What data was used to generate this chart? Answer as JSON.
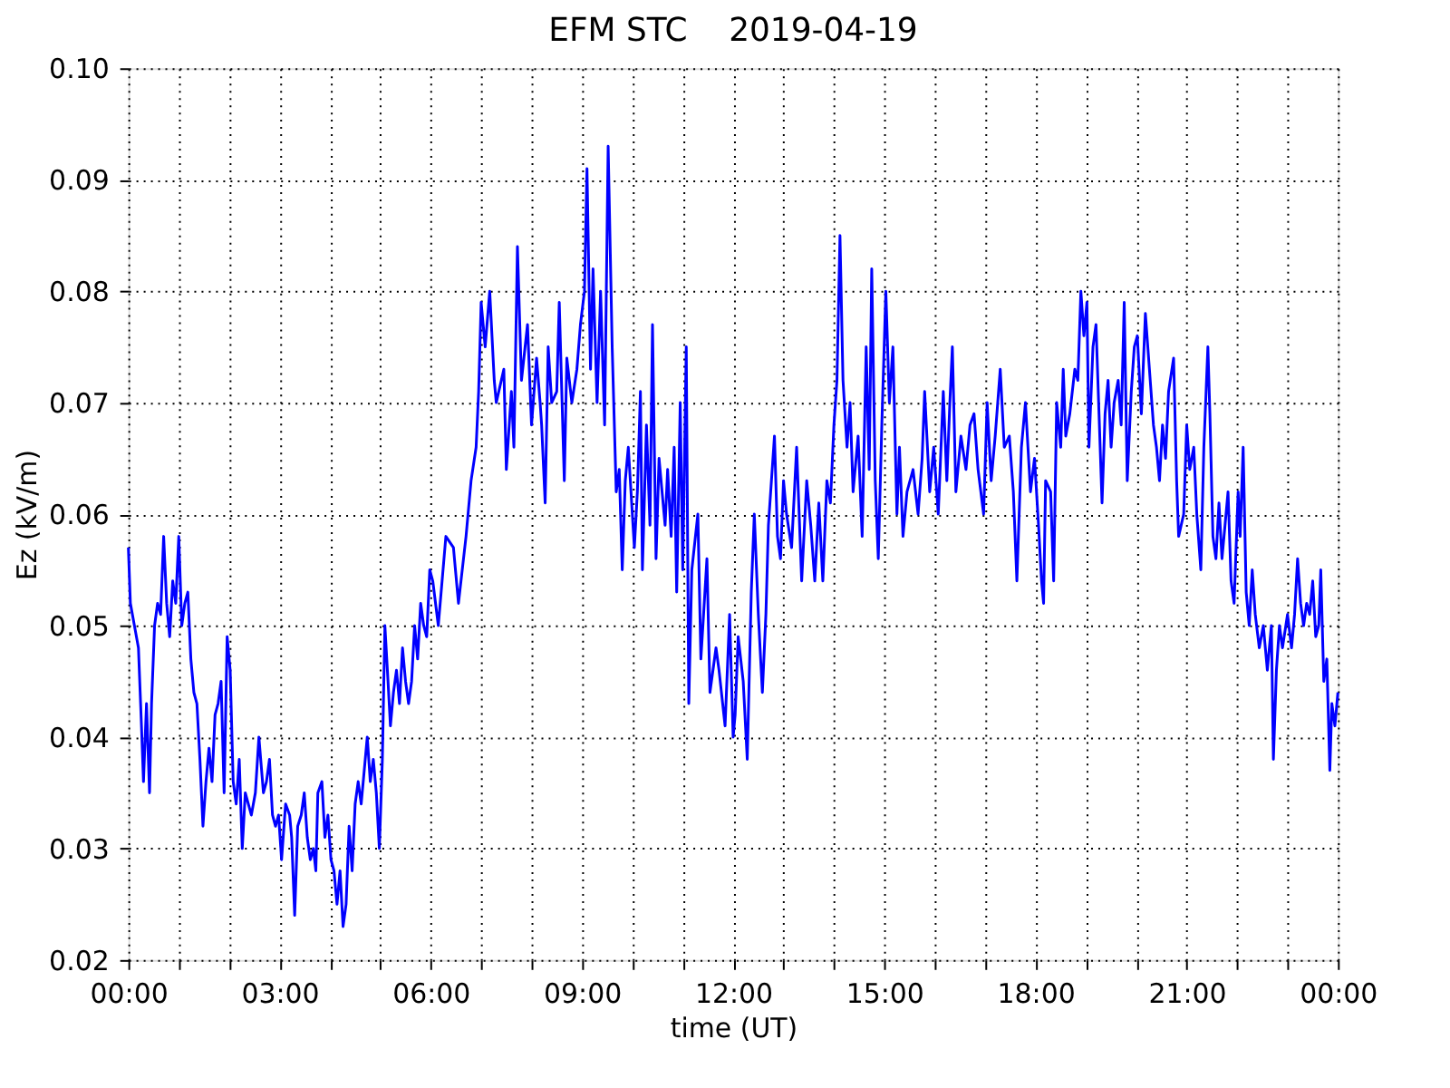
{
  "chart_data": {
    "type": "line",
    "title": "EFM STC    2019-04-19",
    "xlabel": "time (UT)",
    "ylabel": "Ez (kV/m)",
    "xlim": [
      0,
      24
    ],
    "ylim": [
      0.02,
      0.1
    ],
    "xticks": [
      {
        "value": 0,
        "label": "00:00"
      },
      {
        "value": 1,
        "label": null
      },
      {
        "value": 2,
        "label": null
      },
      {
        "value": 3,
        "label": "03:00"
      },
      {
        "value": 4,
        "label": null
      },
      {
        "value": 5,
        "label": null
      },
      {
        "value": 6,
        "label": "06:00"
      },
      {
        "value": 7,
        "label": null
      },
      {
        "value": 8,
        "label": null
      },
      {
        "value": 9,
        "label": "09:00"
      },
      {
        "value": 10,
        "label": null
      },
      {
        "value": 11,
        "label": null
      },
      {
        "value": 12,
        "label": "12:00"
      },
      {
        "value": 13,
        "label": null
      },
      {
        "value": 14,
        "label": null
      },
      {
        "value": 15,
        "label": "15:00"
      },
      {
        "value": 16,
        "label": null
      },
      {
        "value": 17,
        "label": null
      },
      {
        "value": 18,
        "label": "18:00"
      },
      {
        "value": 19,
        "label": null
      },
      {
        "value": 20,
        "label": null
      },
      {
        "value": 21,
        "label": "21:00"
      },
      {
        "value": 22,
        "label": null
      },
      {
        "value": 23,
        "label": null
      },
      {
        "value": 24,
        "label": "00:00"
      }
    ],
    "yticks": [
      0.02,
      0.03,
      0.04,
      0.05,
      0.06,
      0.07,
      0.08,
      0.09,
      {
        "value": 0.1,
        "label": "0.10"
      }
    ],
    "grid": true,
    "legend": false,
    "marker": "none",
    "line_style": "solid",
    "series": [
      {
        "color": "#0000ff",
        "x": [
          0.0,
          0.04,
          0.12,
          0.2,
          0.26,
          0.3,
          0.36,
          0.42,
          0.46,
          0.52,
          0.58,
          0.64,
          0.7,
          0.76,
          0.82,
          0.88,
          0.94,
          1.0,
          1.06,
          1.12,
          1.18,
          1.24,
          1.3,
          1.36,
          1.42,
          1.48,
          1.54,
          1.6,
          1.66,
          1.72,
          1.78,
          1.84,
          1.9,
          1.96,
          2.02,
          2.08,
          2.14,
          2.2,
          2.26,
          2.32,
          2.38,
          2.44,
          2.52,
          2.59,
          2.68,
          2.74,
          2.8,
          2.86,
          2.92,
          2.98,
          3.04,
          3.12,
          3.2,
          3.24,
          3.3,
          3.36,
          3.43,
          3.49,
          3.55,
          3.61,
          3.67,
          3.72,
          3.76,
          3.84,
          3.9,
          3.96,
          4.02,
          4.08,
          4.14,
          4.2,
          4.26,
          4.32,
          4.38,
          4.44,
          4.5,
          4.56,
          4.62,
          4.68,
          4.74,
          4.8,
          4.86,
          4.92,
          4.98,
          5.04,
          5.09,
          5.14,
          5.2,
          5.26,
          5.32,
          5.38,
          5.44,
          5.5,
          5.56,
          5.62,
          5.68,
          5.74,
          5.8,
          5.86,
          5.92,
          5.98,
          6.04,
          6.15,
          6.3,
          6.45,
          6.55,
          6.7,
          6.8,
          6.9,
          6.95,
          7.0,
          7.08,
          7.17,
          7.26,
          7.3,
          7.45,
          7.5,
          7.6,
          7.65,
          7.72,
          7.8,
          7.92,
          8.0,
          8.1,
          8.17,
          8.2,
          8.27,
          8.33,
          8.4,
          8.5,
          8.55,
          8.65,
          8.7,
          8.8,
          8.9,
          8.97,
          9.05,
          9.1,
          9.17,
          9.22,
          9.3,
          9.37,
          9.45,
          9.52,
          9.6,
          9.68,
          9.74,
          9.8,
          9.86,
          9.92,
          10.04,
          10.1,
          10.16,
          10.2,
          10.28,
          10.35,
          10.4,
          10.47,
          10.53,
          10.65,
          10.7,
          10.77,
          10.83,
          10.88,
          10.95,
          11.0,
          11.07,
          11.12,
          11.18,
          11.3,
          11.36,
          11.48,
          11.54,
          11.66,
          11.72,
          11.84,
          11.93,
          12.0,
          12.04,
          12.1,
          12.2,
          12.28,
          12.36,
          12.42,
          12.5,
          12.58,
          12.65,
          12.7,
          12.76,
          12.82,
          12.88,
          12.94,
          13.0,
          13.06,
          13.16,
          13.26,
          13.36,
          13.46,
          13.54,
          13.62,
          13.7,
          13.78,
          13.86,
          13.93,
          14.0,
          14.06,
          14.12,
          14.18,
          14.26,
          14.32,
          14.38,
          14.48,
          14.56,
          14.64,
          14.7,
          14.75,
          14.82,
          14.88,
          14.95,
          15.03,
          15.1,
          15.17,
          15.25,
          15.3,
          15.37,
          15.45,
          15.57,
          15.67,
          15.75,
          15.8,
          15.9,
          15.98,
          16.07,
          16.17,
          16.24,
          16.3,
          16.35,
          16.42,
          16.52,
          16.62,
          16.7,
          16.78,
          16.86,
          16.97,
          17.04,
          17.12,
          17.2,
          17.3,
          17.38,
          17.48,
          17.56,
          17.63,
          17.72,
          17.8,
          17.9,
          17.98,
          18.06,
          18.12,
          18.16,
          18.2,
          18.3,
          18.36,
          18.42,
          18.5,
          18.55,
          18.6,
          18.68,
          18.78,
          18.84,
          18.9,
          18.96,
          19.02,
          19.06,
          19.14,
          19.2,
          19.26,
          19.32,
          19.38,
          19.44,
          19.5,
          19.56,
          19.64,
          19.7,
          19.76,
          19.82,
          19.9,
          19.96,
          20.02,
          20.1,
          20.18,
          20.26,
          20.34,
          20.4,
          20.46,
          20.52,
          20.58,
          20.64,
          20.74,
          20.8,
          20.84,
          20.94,
          21.0,
          21.06,
          21.14,
          21.2,
          21.28,
          21.34,
          21.42,
          21.46,
          21.52,
          21.58,
          21.64,
          21.7,
          21.76,
          21.82,
          21.88,
          21.94,
          22.02,
          22.06,
          22.12,
          22.18,
          22.24,
          22.3,
          22.36,
          22.44,
          22.52,
          22.6,
          22.68,
          22.72,
          22.78,
          22.84,
          22.9,
          23.0,
          23.08,
          23.14,
          23.2,
          23.26,
          23.32,
          23.38,
          23.44,
          23.5,
          23.56,
          23.62,
          23.66,
          23.72,
          23.78,
          23.84,
          23.88,
          23.94,
          24.0
        ],
        "values": [
          0.057,
          0.052,
          0.05,
          0.048,
          0.041,
          0.036,
          0.043,
          0.035,
          0.043,
          0.05,
          0.052,
          0.051,
          0.058,
          0.052,
          0.049,
          0.054,
          0.052,
          0.058,
          0.05,
          0.052,
          0.053,
          0.047,
          0.044,
          0.043,
          0.038,
          0.032,
          0.036,
          0.039,
          0.036,
          0.042,
          0.043,
          0.045,
          0.035,
          0.049,
          0.046,
          0.036,
          0.034,
          0.038,
          0.03,
          0.035,
          0.034,
          0.033,
          0.035,
          0.04,
          0.035,
          0.036,
          0.038,
          0.033,
          0.032,
          0.033,
          0.029,
          0.034,
          0.033,
          0.031,
          0.024,
          0.032,
          0.033,
          0.035,
          0.031,
          0.029,
          0.03,
          0.028,
          0.035,
          0.036,
          0.031,
          0.033,
          0.029,
          0.028,
          0.025,
          0.028,
          0.023,
          0.025,
          0.032,
          0.028,
          0.034,
          0.036,
          0.034,
          0.037,
          0.04,
          0.036,
          0.038,
          0.035,
          0.03,
          0.038,
          0.05,
          0.046,
          0.041,
          0.044,
          0.046,
          0.043,
          0.048,
          0.045,
          0.043,
          0.045,
          0.05,
          0.047,
          0.052,
          0.05,
          0.049,
          0.055,
          0.054,
          0.05,
          0.058,
          0.057,
          0.052,
          0.058,
          0.063,
          0.066,
          0.071,
          0.079,
          0.075,
          0.08,
          0.072,
          0.07,
          0.073,
          0.064,
          0.071,
          0.066,
          0.084,
          0.072,
          0.077,
          0.068,
          0.074,
          0.07,
          0.068,
          0.061,
          0.075,
          0.07,
          0.071,
          0.079,
          0.063,
          0.074,
          0.07,
          0.073,
          0.077,
          0.08,
          0.091,
          0.073,
          0.082,
          0.07,
          0.08,
          0.068,
          0.093,
          0.075,
          0.062,
          0.064,
          0.055,
          0.063,
          0.066,
          0.057,
          0.062,
          0.071,
          0.055,
          0.068,
          0.059,
          0.077,
          0.056,
          0.065,
          0.059,
          0.064,
          0.058,
          0.066,
          0.053,
          0.07,
          0.055,
          0.075,
          0.043,
          0.055,
          0.06,
          0.047,
          0.056,
          0.044,
          0.048,
          0.046,
          0.041,
          0.051,
          0.04,
          0.042,
          0.049,
          0.045,
          0.038,
          0.053,
          0.06,
          0.051,
          0.044,
          0.051,
          0.059,
          0.063,
          0.067,
          0.058,
          0.056,
          0.063,
          0.06,
          0.057,
          0.066,
          0.054,
          0.063,
          0.059,
          0.054,
          0.061,
          0.054,
          0.063,
          0.061,
          0.068,
          0.072,
          0.085,
          0.072,
          0.066,
          0.07,
          0.062,
          0.067,
          0.058,
          0.075,
          0.064,
          0.082,
          0.063,
          0.056,
          0.068,
          0.08,
          0.07,
          0.075,
          0.06,
          0.066,
          0.058,
          0.062,
          0.064,
          0.06,
          0.065,
          0.071,
          0.062,
          0.066,
          0.06,
          0.071,
          0.063,
          0.07,
          0.075,
          0.062,
          0.067,
          0.064,
          0.068,
          0.069,
          0.064,
          0.06,
          0.07,
          0.063,
          0.067,
          0.073,
          0.066,
          0.067,
          0.062,
          0.054,
          0.066,
          0.07,
          0.062,
          0.065,
          0.059,
          0.054,
          0.052,
          0.063,
          0.062,
          0.054,
          0.07,
          0.066,
          0.073,
          0.067,
          0.069,
          0.073,
          0.072,
          0.08,
          0.076,
          0.079,
          0.066,
          0.075,
          0.077,
          0.069,
          0.061,
          0.069,
          0.072,
          0.066,
          0.07,
          0.072,
          0.068,
          0.079,
          0.063,
          0.071,
          0.075,
          0.076,
          0.069,
          0.078,
          0.073,
          0.068,
          0.066,
          0.063,
          0.068,
          0.065,
          0.071,
          0.074,
          0.063,
          0.058,
          0.06,
          0.068,
          0.064,
          0.066,
          0.06,
          0.055,
          0.066,
          0.075,
          0.069,
          0.058,
          0.056,
          0.061,
          0.056,
          0.059,
          0.062,
          0.054,
          0.052,
          0.062,
          0.058,
          0.066,
          0.053,
          0.05,
          0.055,
          0.051,
          0.048,
          0.05,
          0.046,
          0.05,
          0.038,
          0.046,
          0.05,
          0.048,
          0.051,
          0.048,
          0.051,
          0.056,
          0.052,
          0.05,
          0.052,
          0.051,
          0.054,
          0.049,
          0.05,
          0.055,
          0.045,
          0.047,
          0.037,
          0.043,
          0.041,
          0.044
        ]
      }
    ]
  }
}
